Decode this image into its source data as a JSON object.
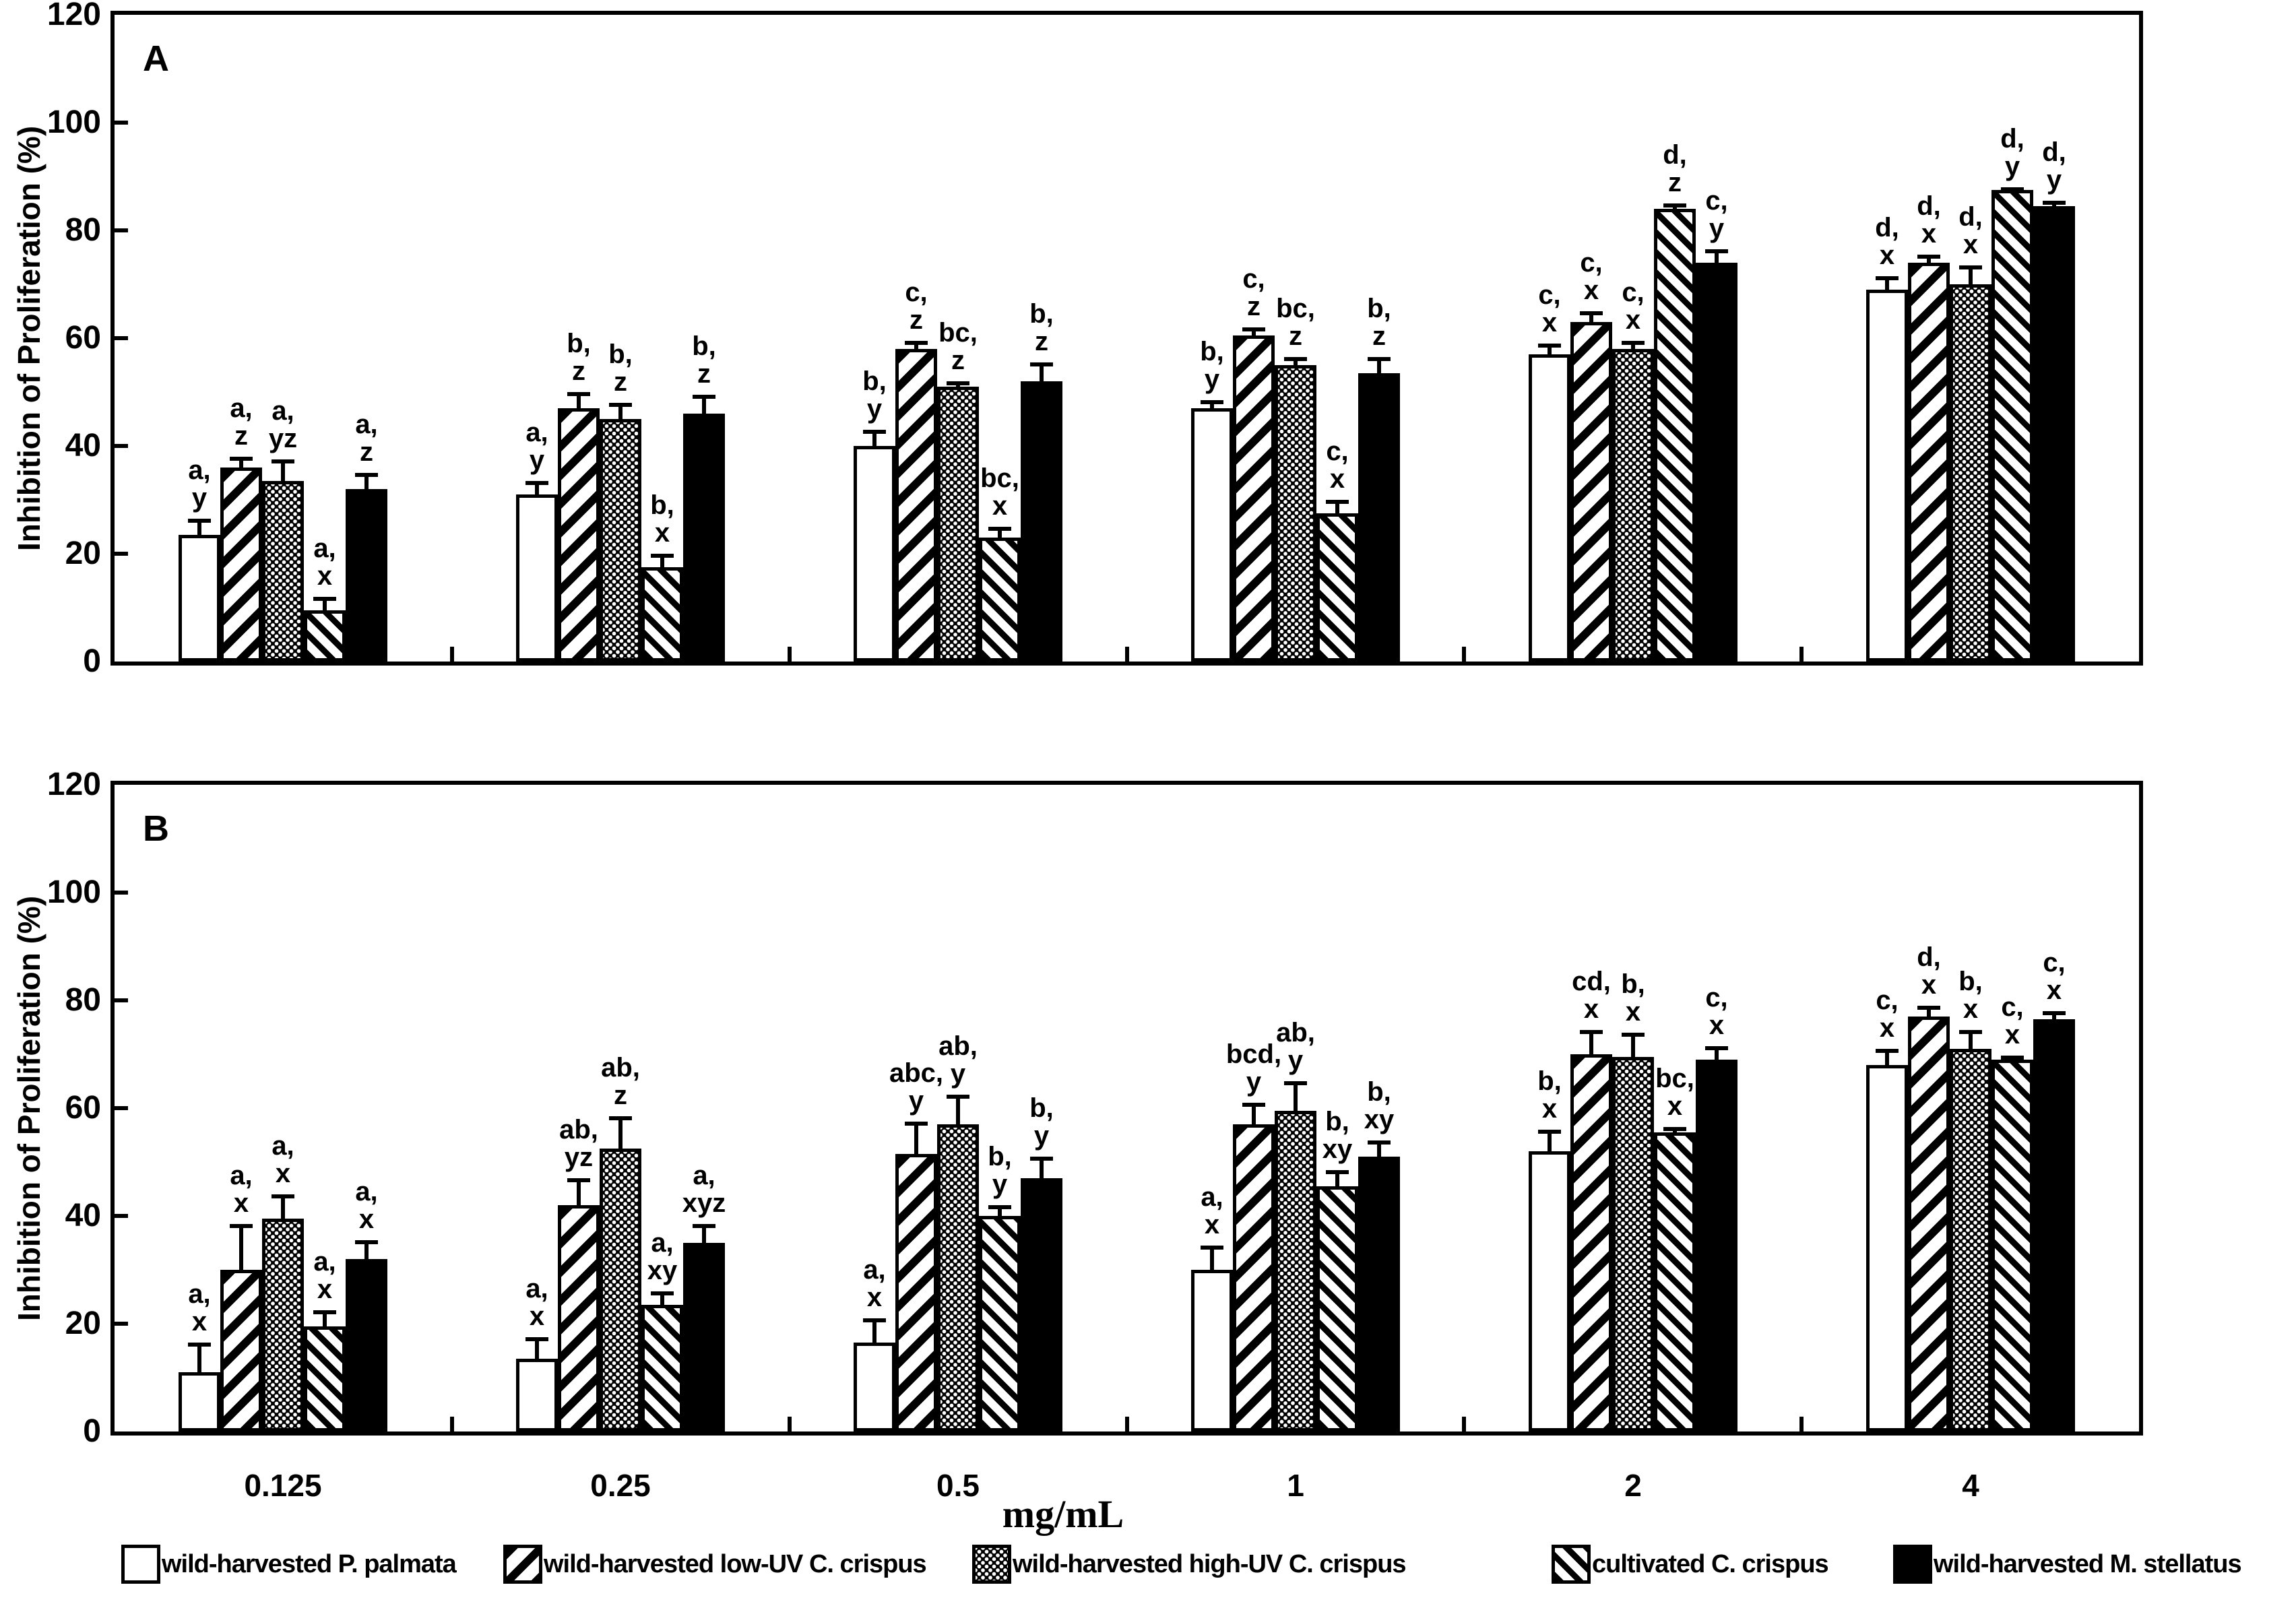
{
  "figure": {
    "background_color": "#ffffff",
    "foreground_color": "#000000",
    "y_axis_title": "Inhibition of Proliferation (%)",
    "x_axis_unit_label": "mg/mL",
    "y_ticks": [
      0,
      20,
      40,
      60,
      80,
      100,
      120
    ],
    "categories": [
      "0.125",
      "0.25",
      "0.5",
      "1",
      "2",
      "4"
    ]
  },
  "legend": {
    "items": [
      {
        "label": "wild-harvested P. palmata",
        "pattern": "white"
      },
      {
        "label": "wild-harvested low-UV C. crispus",
        "pattern": "diag-wide"
      },
      {
        "label": "wild-harvested high-UV C. crispus",
        "pattern": "dots"
      },
      {
        "label": "cultivated C. crispus",
        "pattern": "diag-fine"
      },
      {
        "label": "wild-harvested M. stellatus",
        "pattern": "black"
      }
    ]
  },
  "chart_data": [
    {
      "type": "bar",
      "panel_label": "A",
      "xlabel": "mg/mL",
      "ylabel": "Inhibition of Proliferation (%)",
      "ylim": [
        0,
        120
      ],
      "yticks": [
        0,
        20,
        40,
        60,
        80,
        100,
        120
      ],
      "grid": false,
      "legend_position": "bottom",
      "categories": [
        "0.125",
        "0.25",
        "0.5",
        "1",
        "2",
        "4"
      ],
      "series": [
        {
          "name": "wild-harvested P. palmata",
          "pattern": "white",
          "values": [
            23.5,
            31,
            40,
            47,
            57,
            69
          ],
          "errors": [
            3,
            2.5,
            3,
            1.5,
            2,
            2.5
          ],
          "sig_labels": [
            [
              "a,",
              "y"
            ],
            [
              "a,",
              "y"
            ],
            [
              "b,",
              "y"
            ],
            [
              "b,",
              "y"
            ],
            [
              "c,",
              "x"
            ],
            [
              "d,",
              "x"
            ]
          ]
        },
        {
          "name": "wild-harvested low-UV C. crispus",
          "pattern": "diag-wide",
          "values": [
            36,
            47,
            58,
            60.5,
            63,
            74
          ],
          "errors": [
            2,
            3,
            1.5,
            1.5,
            2,
            1.5
          ],
          "sig_labels": [
            [
              "a,",
              "z"
            ],
            [
              "b,",
              "z"
            ],
            [
              "c,",
              "z"
            ],
            [
              "c,",
              "z"
            ],
            [
              "c,",
              "x"
            ],
            [
              "d,",
              "x"
            ]
          ]
        },
        {
          "name": "wild-harvested high-UV C. crispus",
          "pattern": "dots",
          "values": [
            33.5,
            45,
            51,
            55,
            58,
            70
          ],
          "errors": [
            4,
            3,
            1,
            1.5,
            1.5,
            3.5
          ],
          "sig_labels": [
            [
              "a,",
              "yz"
            ],
            [
              "b,",
              "z"
            ],
            [
              "bc,",
              "z"
            ],
            [
              "bc,",
              "z"
            ],
            [
              "c,",
              "x"
            ],
            [
              "d,",
              "x"
            ]
          ]
        },
        {
          "name": "cultivated C. crispus",
          "pattern": "diag-fine",
          "values": [
            9.5,
            17.5,
            23,
            27.5,
            84,
            87.5
          ],
          "errors": [
            2.5,
            2.5,
            2,
            2.5,
            1,
            0.5
          ],
          "sig_labels": [
            [
              "a,",
              "x"
            ],
            [
              "b,",
              "x"
            ],
            [
              "bc,",
              "x"
            ],
            [
              "c,",
              "x"
            ],
            [
              "d,",
              "z"
            ],
            [
              "d,",
              "y"
            ]
          ]
        },
        {
          "name": "wild-harvested M. stellatus",
          "pattern": "black",
          "values": [
            32,
            46,
            52,
            53.5,
            74,
            84.5
          ],
          "errors": [
            3,
            3.5,
            3.5,
            3,
            2.5,
            1
          ],
          "sig_labels": [
            [
              "a,",
              "z"
            ],
            [
              "b,",
              "z"
            ],
            [
              "b,",
              "z"
            ],
            [
              "b,",
              "z"
            ],
            [
              "c,",
              "y"
            ],
            [
              "d,",
              "y"
            ]
          ]
        }
      ]
    },
    {
      "type": "bar",
      "panel_label": "B",
      "xlabel": "mg/mL",
      "ylabel": "Inhibition of Proliferation (%)",
      "ylim": [
        0,
        120
      ],
      "yticks": [
        0,
        20,
        40,
        60,
        80,
        100,
        120
      ],
      "grid": false,
      "legend_position": "bottom",
      "categories": [
        "0.125",
        "0.25",
        "0.5",
        "1",
        "2",
        "4"
      ],
      "series": [
        {
          "name": "wild-harvested P. palmata",
          "pattern": "white",
          "values": [
            11,
            13.5,
            16.5,
            30,
            52,
            68
          ],
          "errors": [
            5.5,
            4,
            4.5,
            4.5,
            4,
            3
          ],
          "sig_labels": [
            [
              "a,",
              "x"
            ],
            [
              "a,",
              "x"
            ],
            [
              "a,",
              "x"
            ],
            [
              "a,",
              "x"
            ],
            [
              "b,",
              "x"
            ],
            [
              "c,",
              "x"
            ]
          ]
        },
        {
          "name": "wild-harvested low-UV C. crispus",
          "pattern": "diag-wide",
          "values": [
            30,
            42,
            51.5,
            57,
            70,
            77
          ],
          "errors": [
            8.5,
            5,
            6,
            4,
            4.5,
            2
          ],
          "sig_labels": [
            [
              "a,",
              "x"
            ],
            [
              "ab,",
              "yz"
            ],
            [
              "abc,",
              "y"
            ],
            [
              "bcd,",
              "y"
            ],
            [
              "cd,",
              "x"
            ],
            [
              "d,",
              "x"
            ]
          ]
        },
        {
          "name": "wild-harvested high-UV C. crispus",
          "pattern": "dots",
          "values": [
            39.5,
            52.5,
            57,
            59.5,
            69.5,
            71
          ],
          "errors": [
            4.5,
            6,
            5.5,
            5.5,
            4.5,
            3.5
          ],
          "sig_labels": [
            [
              "a,",
              "x"
            ],
            [
              "ab,",
              "z"
            ],
            [
              "ab,",
              "y"
            ],
            [
              "ab,",
              "y"
            ],
            [
              "b,",
              "x"
            ],
            [
              "b,",
              "x"
            ]
          ]
        },
        {
          "name": "cultivated C. crispus",
          "pattern": "diag-fine",
          "values": [
            19.5,
            23.5,
            40,
            45.5,
            55.5,
            69
          ],
          "errors": [
            3,
            2.5,
            2,
            3,
            1,
            0.8
          ],
          "sig_labels": [
            [
              "a,",
              "x"
            ],
            [
              "a,",
              "xy"
            ],
            [
              "b,",
              "y"
            ],
            [
              "b,",
              "xy"
            ],
            [
              "bc,",
              "x"
            ],
            [
              "c,",
              "x"
            ]
          ]
        },
        {
          "name": "wild-harvested M. stellatus",
          "pattern": "black",
          "values": [
            32,
            35,
            47,
            51,
            69,
            76.5
          ],
          "errors": [
            3.5,
            3.5,
            4,
            3,
            2.5,
            1.5
          ],
          "sig_labels": [
            [
              "a,",
              "x"
            ],
            [
              "a,",
              "xyz"
            ],
            [
              "b,",
              "y"
            ],
            [
              "b,",
              "xy"
            ],
            [
              "c,",
              "x"
            ],
            [
              "c,",
              "x"
            ]
          ]
        }
      ]
    }
  ]
}
